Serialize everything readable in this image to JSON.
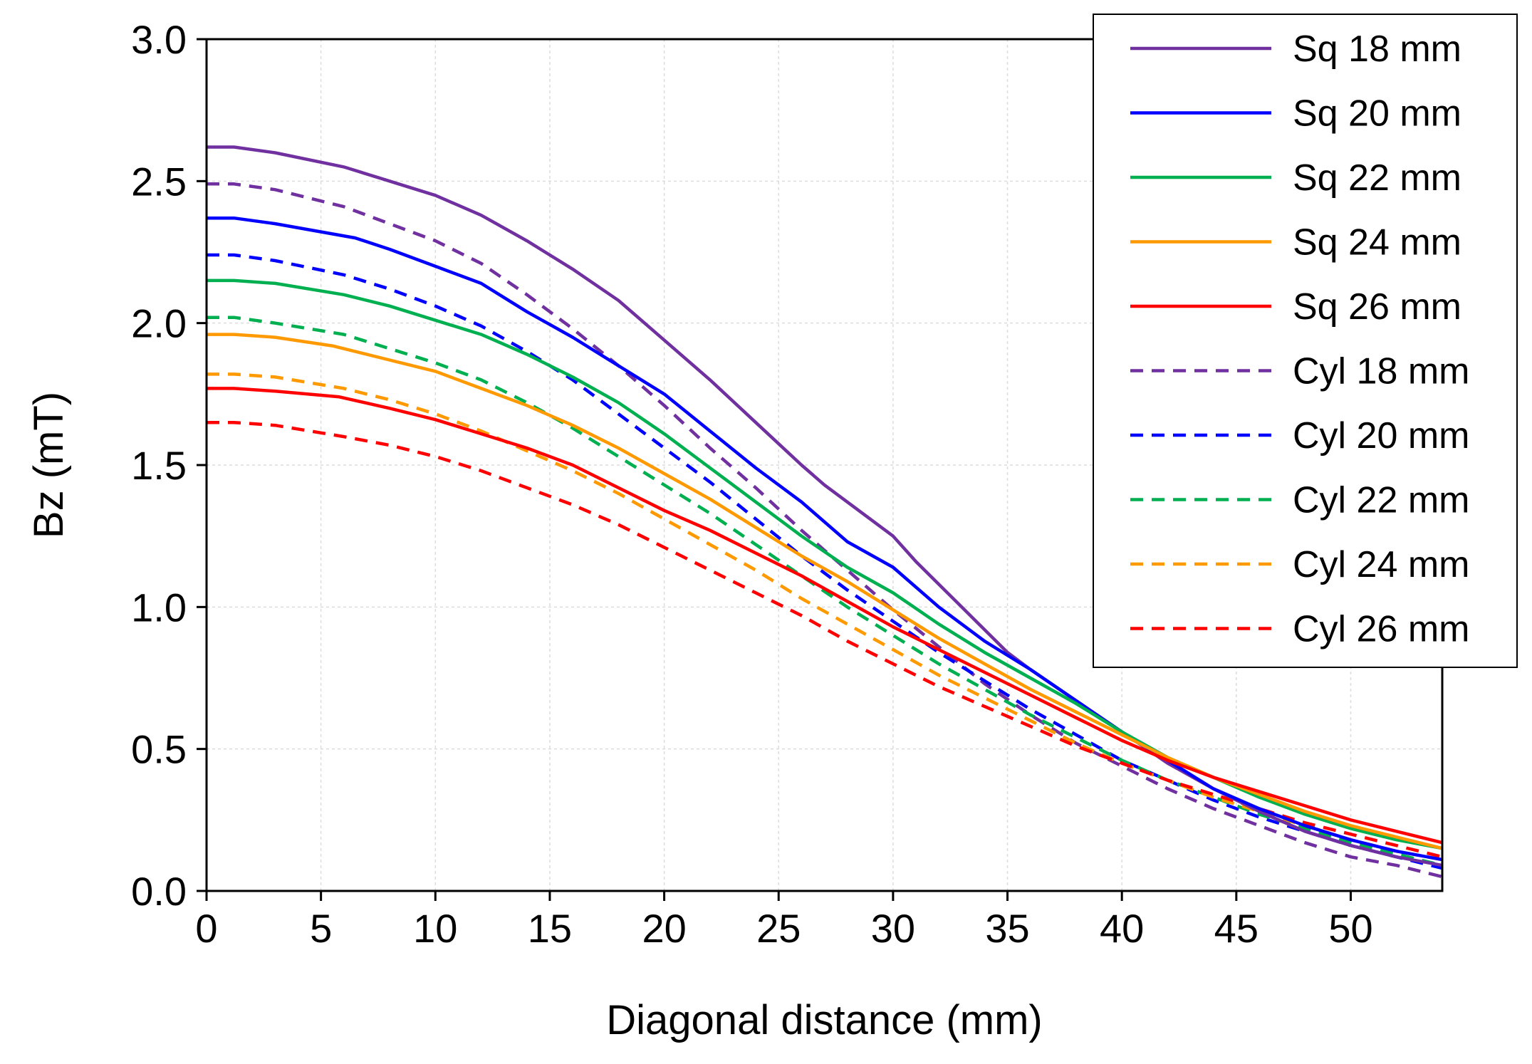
{
  "chart_data": {
    "type": "line",
    "title": "",
    "xlabel": "Diagonal distance (mm)",
    "ylabel": "Bz (mT)",
    "xlim": [
      0,
      54
    ],
    "ylim": [
      0,
      3.0
    ],
    "xticks": [
      0,
      5,
      10,
      15,
      20,
      25,
      30,
      35,
      40,
      45,
      50
    ],
    "yticks": [
      0.0,
      0.5,
      1.0,
      1.5,
      2.0,
      2.5,
      3.0
    ],
    "xtick_labels": [
      "0",
      "5",
      "10",
      "15",
      "20",
      "25",
      "30",
      "35",
      "40",
      "45",
      "50"
    ],
    "ytick_labels": [
      "0.0",
      "0.5",
      "1.0",
      "1.5",
      "2.0",
      "2.5",
      "3.0"
    ],
    "grid": true,
    "legend_position": "top-right",
    "series": [
      {
        "name": "Sq 18 mm",
        "color": "#7030A0",
        "dash": "solid",
        "x": [
          0,
          1.2,
          3,
          6,
          8,
          10,
          12,
          14,
          16,
          18,
          20,
          22,
          24,
          26,
          27,
          28,
          30,
          31,
          33,
          35,
          36,
          38,
          40,
          42,
          44,
          46,
          48,
          50,
          52,
          54
        ],
        "y": [
          2.62,
          2.62,
          2.6,
          2.55,
          2.5,
          2.45,
          2.38,
          2.29,
          2.19,
          2.08,
          1.94,
          1.8,
          1.65,
          1.5,
          1.43,
          1.37,
          1.25,
          1.16,
          1.0,
          0.84,
          0.78,
          0.67,
          0.56,
          0.45,
          0.36,
          0.28,
          0.21,
          0.16,
          0.12,
          0.09
        ]
      },
      {
        "name": "Sq 20 mm",
        "color": "#0000FF",
        "dash": "solid",
        "x": [
          0,
          1.2,
          3,
          6.5,
          8,
          10,
          12,
          13,
          14,
          16,
          18,
          19,
          20,
          22,
          24,
          26,
          28,
          30,
          32,
          34,
          36,
          38,
          40,
          42,
          44,
          46,
          48,
          50,
          52,
          54
        ],
        "y": [
          2.37,
          2.37,
          2.35,
          2.3,
          2.26,
          2.2,
          2.14,
          2.09,
          2.04,
          1.95,
          1.85,
          1.8,
          1.75,
          1.62,
          1.49,
          1.37,
          1.23,
          1.14,
          1.0,
          0.88,
          0.78,
          0.67,
          0.56,
          0.46,
          0.36,
          0.29,
          0.23,
          0.18,
          0.14,
          0.11
        ]
      },
      {
        "name": "Sq 22 mm",
        "color": "#00B050",
        "dash": "solid",
        "x": [
          0,
          1.2,
          3,
          6,
          8,
          10,
          12,
          14,
          16,
          18,
          20,
          22,
          24,
          26,
          28,
          30,
          32,
          34,
          36,
          38,
          40,
          42,
          44,
          46,
          48,
          50,
          52,
          54
        ],
        "y": [
          2.15,
          2.15,
          2.14,
          2.1,
          2.06,
          2.01,
          1.96,
          1.89,
          1.81,
          1.72,
          1.61,
          1.49,
          1.37,
          1.25,
          1.14,
          1.05,
          0.94,
          0.84,
          0.75,
          0.66,
          0.56,
          0.47,
          0.4,
          0.33,
          0.27,
          0.22,
          0.18,
          0.15
        ]
      },
      {
        "name": "Sq 24 mm",
        "color": "#FF9900",
        "dash": "solid",
        "x": [
          0,
          1.2,
          3,
          5.5,
          8,
          10,
          12,
          14,
          16,
          18,
          20,
          22,
          24,
          26,
          28,
          30,
          32,
          34,
          36,
          38,
          40,
          42,
          44,
          46,
          48,
          50,
          52,
          54
        ],
        "y": [
          1.96,
          1.96,
          1.95,
          1.92,
          1.87,
          1.83,
          1.77,
          1.71,
          1.64,
          1.56,
          1.47,
          1.38,
          1.28,
          1.18,
          1.09,
          0.99,
          0.89,
          0.8,
          0.71,
          0.63,
          0.55,
          0.47,
          0.4,
          0.34,
          0.28,
          0.23,
          0.19,
          0.15
        ]
      },
      {
        "name": "Sq 26 mm",
        "color": "#FF0000",
        "dash": "solid",
        "x": [
          0,
          1.2,
          3,
          5.8,
          8,
          10,
          12,
          14,
          16,
          18,
          20,
          22,
          24,
          26,
          28,
          30,
          32,
          34,
          36,
          38,
          40,
          42,
          44,
          46,
          48,
          50,
          52,
          54
        ],
        "y": [
          1.77,
          1.77,
          1.76,
          1.74,
          1.7,
          1.66,
          1.61,
          1.56,
          1.5,
          1.42,
          1.34,
          1.27,
          1.19,
          1.11,
          1.02,
          0.93,
          0.85,
          0.77,
          0.69,
          0.61,
          0.53,
          0.46,
          0.4,
          0.35,
          0.3,
          0.25,
          0.21,
          0.17
        ]
      },
      {
        "name": "Cyl 18 mm",
        "color": "#7030A0",
        "dash": "dashed",
        "x": [
          0,
          1.2,
          3,
          6,
          8,
          10,
          12,
          14,
          16,
          18,
          20,
          22,
          24,
          26,
          28,
          30,
          32,
          34,
          36,
          38,
          40,
          42,
          44,
          46,
          48,
          50,
          52,
          54
        ],
        "y": [
          2.49,
          2.49,
          2.47,
          2.41,
          2.35,
          2.29,
          2.21,
          2.1,
          1.98,
          1.85,
          1.71,
          1.56,
          1.42,
          1.27,
          1.13,
          0.99,
          0.86,
          0.73,
          0.62,
          0.52,
          0.44,
          0.36,
          0.29,
          0.23,
          0.17,
          0.12,
          0.09,
          0.05
        ]
      },
      {
        "name": "Cyl 20 mm",
        "color": "#0000FF",
        "dash": "dashed",
        "x": [
          0,
          1.2,
          3,
          6,
          8,
          10,
          12,
          14,
          16,
          18,
          20,
          22,
          24,
          26,
          28,
          30,
          32,
          34,
          36,
          38,
          40,
          42,
          44,
          46,
          48,
          50,
          52,
          54
        ],
        "y": [
          2.24,
          2.24,
          2.22,
          2.17,
          2.12,
          2.06,
          1.99,
          1.9,
          1.8,
          1.68,
          1.56,
          1.44,
          1.31,
          1.18,
          1.06,
          0.95,
          0.84,
          0.74,
          0.64,
          0.55,
          0.46,
          0.39,
          0.32,
          0.26,
          0.21,
          0.16,
          0.12,
          0.08
        ]
      },
      {
        "name": "Cyl 22 mm",
        "color": "#00B050",
        "dash": "dashed",
        "x": [
          0,
          1.2,
          3,
          6,
          8,
          10,
          12,
          14,
          16,
          18,
          20,
          22,
          24,
          26,
          28,
          30,
          32,
          34,
          36,
          38,
          40,
          42,
          44,
          46,
          48,
          50,
          52,
          54
        ],
        "y": [
          2.02,
          2.02,
          2.0,
          1.96,
          1.91,
          1.86,
          1.8,
          1.72,
          1.63,
          1.53,
          1.43,
          1.33,
          1.22,
          1.11,
          1.0,
          0.9,
          0.8,
          0.71,
          0.62,
          0.54,
          0.46,
          0.39,
          0.33,
          0.27,
          0.22,
          0.17,
          0.13,
          0.09
        ]
      },
      {
        "name": "Cyl 24 mm",
        "color": "#FF9900",
        "dash": "dashed",
        "x": [
          0,
          1.2,
          3,
          6,
          8,
          10,
          12,
          14,
          16,
          18,
          20,
          22,
          24,
          26,
          28,
          30,
          32,
          34,
          36,
          38,
          40,
          42,
          44,
          46,
          48,
          50,
          52,
          54
        ],
        "y": [
          1.82,
          1.82,
          1.81,
          1.77,
          1.73,
          1.68,
          1.62,
          1.55,
          1.48,
          1.4,
          1.31,
          1.22,
          1.13,
          1.03,
          0.94,
          0.85,
          0.76,
          0.68,
          0.6,
          0.52,
          0.45,
          0.39,
          0.33,
          0.28,
          0.23,
          0.18,
          0.14,
          0.11
        ]
      },
      {
        "name": "Cyl 26 mm",
        "color": "#FF0000",
        "dash": "dashed",
        "x": [
          0,
          1.2,
          3,
          6,
          8,
          10,
          12,
          14,
          16,
          18,
          20,
          22,
          24,
          26,
          28,
          30,
          32,
          34,
          36,
          38,
          40,
          42,
          44,
          46,
          48,
          50,
          52,
          54
        ],
        "y": [
          1.65,
          1.65,
          1.64,
          1.6,
          1.57,
          1.53,
          1.48,
          1.42,
          1.36,
          1.29,
          1.21,
          1.13,
          1.05,
          0.97,
          0.88,
          0.8,
          0.72,
          0.65,
          0.58,
          0.51,
          0.45,
          0.39,
          0.34,
          0.29,
          0.24,
          0.2,
          0.16,
          0.12
        ]
      }
    ]
  }
}
